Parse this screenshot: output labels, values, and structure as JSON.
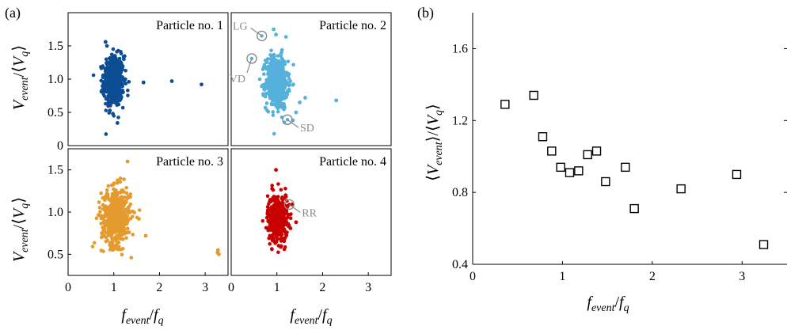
{
  "panel_labels": {
    "a": "(a)",
    "b": "(b)"
  },
  "chart_data": [
    {
      "type": "scatter",
      "id": "p1",
      "title": "Particle no. 1",
      "xlim": [
        0,
        3.5
      ],
      "ylim": [
        0,
        2
      ],
      "xticks": [],
      "yticks": [
        0,
        0.5,
        1.0,
        1.5
      ],
      "ytick_labels": [
        "0",
        "0.5",
        "1.0",
        "1.5"
      ],
      "color": "#0c4d94",
      "cluster": {
        "x_mean": 1.0,
        "x_spread": 0.11,
        "y_mean": 0.97,
        "y_spread": 0.19,
        "n": 520
      },
      "outliers": [
        [
          0.82,
          1.56
        ],
        [
          0.85,
          1.5
        ],
        [
          1.08,
          0.34
        ],
        [
          0.98,
          0.48
        ],
        [
          1.65,
          0.95
        ],
        [
          2.27,
          0.97
        ],
        [
          2.92,
          0.92
        ],
        [
          1.33,
          0.96
        ],
        [
          1.22,
          1.3
        ]
      ],
      "annotations": []
    },
    {
      "type": "scatter",
      "id": "p2",
      "title": "Particle no. 2",
      "xlim": [
        0,
        3.5
      ],
      "ylim": [
        0,
        2
      ],
      "xticks": [],
      "yticks": [],
      "color": "#55b1dc",
      "cluster": {
        "x_mean": 1.0,
        "x_spread": 0.12,
        "y_mean": 0.95,
        "y_spread": 0.2,
        "n": 560
      },
      "outliers": [
        [
          0.93,
          1.75
        ],
        [
          0.98,
          1.67
        ],
        [
          1.42,
          0.5
        ],
        [
          1.5,
          0.65
        ],
        [
          1.62,
          0.72
        ],
        [
          2.3,
          0.68
        ],
        [
          1.35,
          0.38
        ]
      ],
      "annotations": [
        {
          "label": "LG",
          "x": 0.67,
          "y": 1.65
        },
        {
          "label": "VD",
          "x": 0.45,
          "y": 1.31
        },
        {
          "label": "SD",
          "x": 1.23,
          "y": 0.39
        }
      ]
    },
    {
      "type": "scatter",
      "id": "p3",
      "title": "Particle no. 3",
      "xlim": [
        0,
        3.5
      ],
      "ylim": [
        0.25,
        1.75
      ],
      "xticks": [
        0,
        1,
        2,
        3
      ],
      "xtick_labels": [
        "0",
        "1",
        "2",
        "3"
      ],
      "yticks": [
        0.5,
        1.0,
        1.5
      ],
      "ytick_labels": [
        "0.5",
        "1.0",
        "1.5"
      ],
      "color": "#e59a2e",
      "cluster": {
        "x_mean": 1.05,
        "x_spread": 0.16,
        "y_mean": 0.95,
        "y_spread": 0.17,
        "n": 480
      },
      "outliers": [
        [
          1.7,
          0.72
        ],
        [
          1.55,
          0.92
        ],
        [
          1.3,
          1.6
        ],
        [
          3.28,
          0.55
        ],
        [
          3.3,
          0.5
        ],
        [
          3.27,
          0.52
        ]
      ],
      "annotations": []
    },
    {
      "type": "scatter",
      "id": "p4",
      "title": "Particle no. 4",
      "xlim": [
        0,
        3.5
      ],
      "ylim": [
        0.25,
        1.75
      ],
      "xticks": [
        0,
        1,
        2,
        3
      ],
      "xtick_labels": [
        "0",
        "1",
        "2",
        "3"
      ],
      "yticks": [],
      "color": "#c80000",
      "cluster": {
        "x_mean": 1.02,
        "x_spread": 0.11,
        "y_mean": 0.93,
        "y_spread": 0.14,
        "n": 440
      },
      "outliers": [
        [
          0.98,
          1.5
        ],
        [
          1.42,
          0.88
        ]
      ],
      "annotations": [
        {
          "label": "RR",
          "x": 1.27,
          "y": 1.09
        }
      ]
    },
    {
      "type": "scatter",
      "id": "b",
      "marker": "open-square",
      "xlim": [
        0,
        3.5
      ],
      "ylim": [
        0.4,
        1.8
      ],
      "xticks": [
        0,
        1,
        2,
        3
      ],
      "xtick_labels": [
        "0",
        "1",
        "2",
        "3"
      ],
      "yticks": [
        0.4,
        0.8,
        1.2,
        1.6
      ],
      "ytick_labels": [
        "0.4",
        "0.8",
        "1.2",
        "1.6"
      ],
      "points": [
        [
          0.36,
          1.29
        ],
        [
          0.68,
          1.34
        ],
        [
          0.78,
          1.11
        ],
        [
          0.88,
          1.03
        ],
        [
          0.98,
          0.94
        ],
        [
          1.08,
          0.91
        ],
        [
          1.18,
          0.92
        ],
        [
          1.28,
          1.01
        ],
        [
          1.38,
          1.03
        ],
        [
          1.48,
          0.86
        ],
        [
          1.7,
          0.94
        ],
        [
          1.8,
          0.71
        ],
        [
          2.32,
          0.82
        ],
        [
          2.94,
          0.9
        ],
        [
          3.24,
          0.51
        ]
      ]
    }
  ]
}
